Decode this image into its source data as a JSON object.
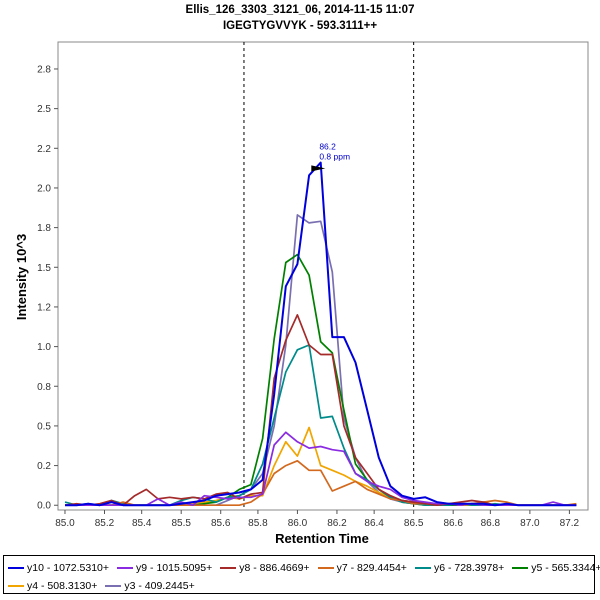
{
  "chart_data": {
    "type": "line",
    "title": "Ellis_126_3303_3121_06, 2014-11-15 11:07",
    "subtitle": "IGEGTYGVVYK - 593.3111++",
    "xlabel": "Retention Time",
    "ylabel": "Intensity 10^3",
    "xlim": [
      84.97,
      87.25
    ],
    "ylim": [
      -0.03,
      2.92
    ],
    "xticks": [
      "85.0",
      "85.2",
      "85.4",
      "85.5",
      "85.6",
      "85.8",
      "86.0",
      "86.2",
      "86.4",
      "86.5",
      "86.6",
      "86.8",
      "87.0",
      "87.2"
    ],
    "xtick_values": [
      85.0,
      85.17,
      85.33,
      85.5,
      85.67,
      85.83,
      86.0,
      86.17,
      86.33,
      86.5,
      86.67,
      86.83,
      87.0,
      87.17
    ],
    "yticks": [
      "0.0",
      "0.2",
      "0.5",
      "0.8",
      "1.0",
      "1.2",
      "1.5",
      "1.8",
      "2.0",
      "2.2",
      "2.5",
      "2.8"
    ],
    "ytick_values": [
      0.0,
      0.25,
      0.5,
      0.75,
      1.0,
      1.25,
      1.5,
      1.75,
      2.0,
      2.25,
      2.5,
      2.75
    ],
    "boundaries": [
      85.77,
      86.5
    ],
    "annotation": {
      "x": 86.12,
      "y": 2.13,
      "lines": [
        "86.2",
        "0.8 ppm"
      ],
      "color": "#0000cc"
    },
    "x": [
      85.0,
      85.05,
      85.1,
      85.15,
      85.2,
      85.25,
      85.3,
      85.35,
      85.4,
      85.45,
      85.5,
      85.55,
      85.6,
      85.65,
      85.7,
      85.75,
      85.8,
      85.85,
      85.9,
      85.95,
      86.0,
      86.05,
      86.1,
      86.15,
      86.2,
      86.25,
      86.3,
      86.35,
      86.4,
      86.45,
      86.5,
      86.55,
      86.6,
      86.65,
      86.7,
      86.75,
      86.8,
      86.85,
      86.9,
      86.95,
      87.0,
      87.05,
      87.1,
      87.15,
      87.2
    ],
    "series": [
      {
        "name": "y10 - 1072.5310+",
        "color": "#0000dd",
        "values": [
          0.0,
          0.0,
          0.01,
          0.0,
          0.02,
          0.0,
          0.0,
          0.0,
          0.0,
          0.0,
          0.01,
          0.02,
          0.03,
          0.06,
          0.07,
          0.08,
          0.1,
          0.16,
          0.7,
          1.38,
          1.52,
          2.08,
          2.16,
          1.06,
          1.06,
          0.9,
          0.6,
          0.3,
          0.12,
          0.06,
          0.04,
          0.05,
          0.02,
          0.01,
          0.01,
          0.01,
          0.01,
          0.0,
          0.01,
          0.0,
          0.0,
          0.0,
          0.0,
          0.0,
          0.0
        ]
      },
      {
        "name": "y9 - 1015.5095+",
        "color": "#8a2be2",
        "values": [
          0.0,
          0.0,
          0.0,
          0.0,
          0.0,
          0.0,
          0.0,
          0.0,
          0.04,
          0.0,
          0.02,
          0.0,
          0.06,
          0.05,
          0.04,
          0.05,
          0.05,
          0.07,
          0.38,
          0.46,
          0.4,
          0.36,
          0.37,
          0.35,
          0.34,
          0.2,
          0.15,
          0.12,
          0.1,
          0.05,
          0.03,
          0.02,
          0.01,
          0.01,
          0.0,
          0.01,
          0.0,
          0.0,
          0.0,
          0.0,
          0.0,
          0.0,
          0.02,
          0.0,
          0.0
        ]
      },
      {
        "name": "y8 - 886.4669+",
        "color": "#a52a2a",
        "values": [
          0.0,
          0.01,
          0.0,
          0.01,
          0.03,
          0.0,
          0.06,
          0.1,
          0.04,
          0.05,
          0.04,
          0.05,
          0.04,
          0.07,
          0.08,
          0.04,
          0.07,
          0.08,
          0.8,
          1.04,
          1.2,
          1.01,
          0.95,
          0.95,
          0.5,
          0.3,
          0.2,
          0.1,
          0.06,
          0.03,
          0.02,
          0.01,
          0.0,
          0.01,
          0.02,
          0.03,
          0.02,
          0.0,
          0.0,
          0.0,
          0.0,
          0.0,
          0.0,
          0.0,
          0.0
        ]
      },
      {
        "name": "y7 - 829.4454+",
        "color": "#d2691e",
        "values": [
          0.0,
          0.0,
          0.0,
          0.0,
          0.0,
          0.02,
          0.0,
          0.0,
          0.0,
          0.0,
          0.0,
          0.0,
          0.0,
          0.0,
          0.0,
          0.0,
          0.02,
          0.07,
          0.2,
          0.25,
          0.28,
          0.22,
          0.22,
          0.09,
          0.12,
          0.15,
          0.1,
          0.07,
          0.04,
          0.03,
          0.01,
          0.01,
          0.0,
          0.01,
          0.0,
          0.01,
          0.02,
          0.03,
          0.02,
          0.0,
          0.0,
          0.0,
          0.0,
          0.0,
          0.01
        ]
      },
      {
        "name": "y6 - 728.3978+",
        "color": "#008b8b",
        "values": [
          0.02,
          0.0,
          0.01,
          0.0,
          0.03,
          0.01,
          0.0,
          0.0,
          0.0,
          0.0,
          0.03,
          0.05,
          0.04,
          0.02,
          0.05,
          0.06,
          0.1,
          0.26,
          0.55,
          0.84,
          0.98,
          1.01,
          0.55,
          0.56,
          0.36,
          0.2,
          0.16,
          0.1,
          0.05,
          0.02,
          0.01,
          0.0,
          0.0,
          0.0,
          0.01,
          0.0,
          0.0,
          0.01,
          0.0,
          0.0,
          0.0,
          0.0,
          0.0,
          0.0,
          0.0
        ]
      },
      {
        "name": "y5 - 565.3344+",
        "color": "#008000",
        "values": [
          0.0,
          0.0,
          0.0,
          0.0,
          0.0,
          0.0,
          0.0,
          0.0,
          0.0,
          0.0,
          0.0,
          0.0,
          0.01,
          0.02,
          0.05,
          0.1,
          0.13,
          0.42,
          1.05,
          1.53,
          1.58,
          1.45,
          1.03,
          0.96,
          0.6,
          0.26,
          0.16,
          0.1,
          0.05,
          0.03,
          0.02,
          0.01,
          0.0,
          0.0,
          0.0,
          0.01,
          0.0,
          0.0,
          0.0,
          0.0,
          0.0,
          0.0,
          0.0,
          0.0,
          0.0
        ]
      },
      {
        "name": "y4 - 508.3130+",
        "color": "#f0a500",
        "values": [
          0.0,
          0.0,
          0.0,
          0.0,
          0.0,
          0.0,
          0.0,
          0.0,
          0.0,
          0.0,
          0.0,
          0.01,
          0.02,
          0.03,
          0.05,
          0.04,
          0.06,
          0.06,
          0.25,
          0.4,
          0.31,
          0.49,
          0.25,
          0.22,
          0.19,
          0.15,
          0.12,
          0.08,
          0.05,
          0.02,
          0.01,
          0.0,
          0.0,
          0.0,
          0.0,
          0.0,
          0.0,
          0.0,
          0.0,
          0.0,
          0.0,
          0.0,
          0.0,
          0.0,
          0.0
        ]
      },
      {
        "name": "y3 - 409.2445+",
        "color": "#7a6fb0",
        "values": [
          0.0,
          0.0,
          0.0,
          0.0,
          0.0,
          0.0,
          0.0,
          0.0,
          0.0,
          0.0,
          0.0,
          0.0,
          0.0,
          0.0,
          0.03,
          0.06,
          0.1,
          0.2,
          0.5,
          1.01,
          1.83,
          1.78,
          1.79,
          1.47,
          0.55,
          0.3,
          0.15,
          0.08,
          0.04,
          0.02,
          0.01,
          0.0,
          0.0,
          0.0,
          0.0,
          0.0,
          0.0,
          0.0,
          0.0,
          0.0,
          0.0,
          0.0,
          0.0,
          0.0,
          0.0
        ]
      }
    ]
  }
}
